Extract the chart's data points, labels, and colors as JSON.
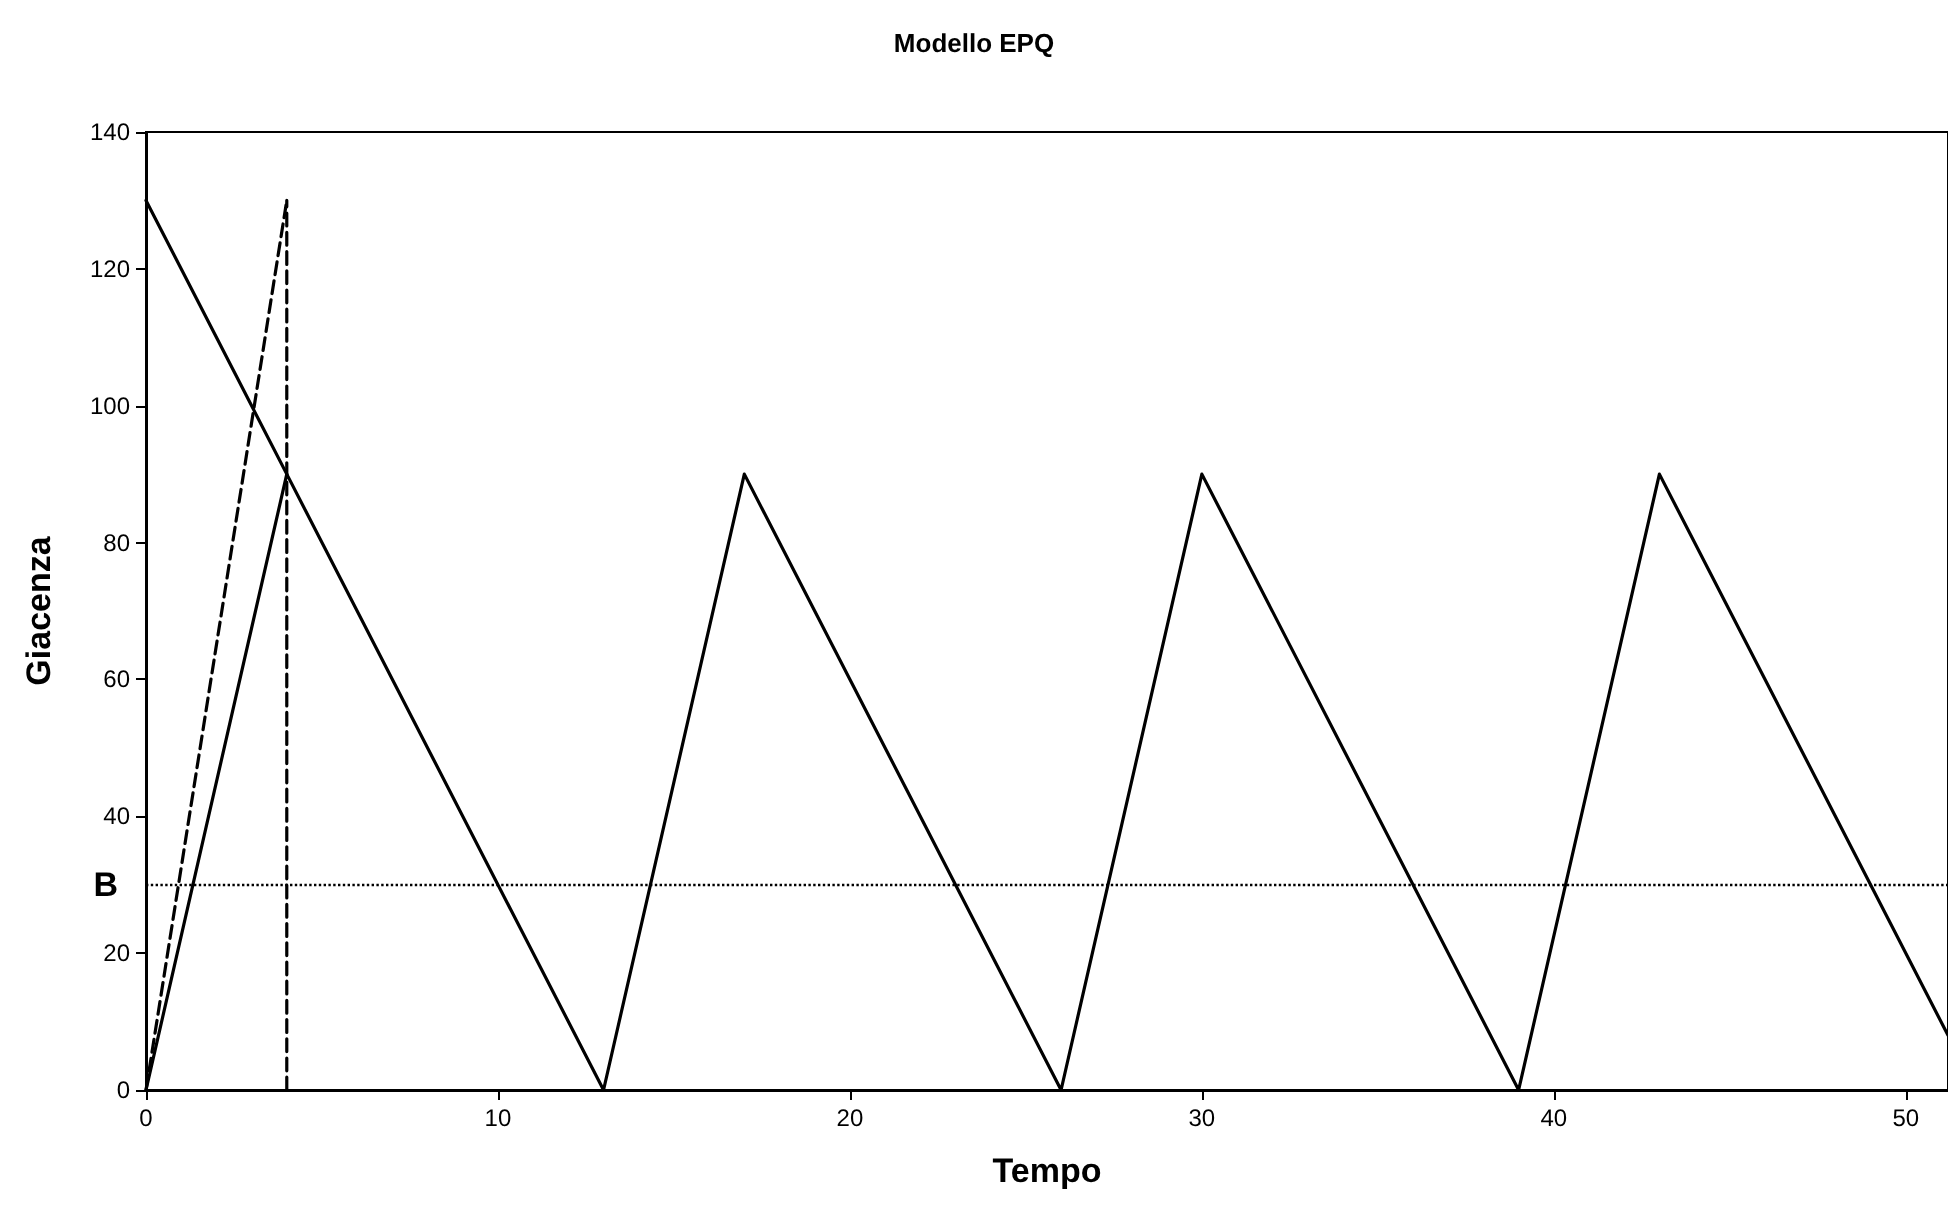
{
  "chart_data": {
    "type": "line",
    "title": "Modello EPQ",
    "xlabel": "Tempo",
    "ylabel": "Giacenza",
    "xlim": [
      0,
      51.2
    ],
    "xticks": [
      0,
      10,
      20,
      30,
      40,
      50
    ],
    "ylim": [
      0,
      140
    ],
    "yticks": [
      0,
      20,
      40,
      60,
      80,
      100,
      120,
      140
    ],
    "grid": false,
    "marker": "none",
    "series": [
      {
        "color": "#000000",
        "line_style": "solid",
        "x": [
          0,
          4,
          13,
          17,
          26,
          30,
          39,
          43,
          51.2
        ],
        "values": [
          0,
          90,
          0,
          90,
          0,
          90,
          0,
          90,
          8
        ]
      },
      {
        "color": "#000000",
        "line_style": "solid",
        "x": [
          0,
          4
        ],
        "values": [
          130,
          90
        ]
      },
      {
        "color": "#000000",
        "line_style": "dashed",
        "x": [
          0,
          4
        ],
        "values": [
          0,
          130
        ]
      },
      {
        "color": "#000000",
        "line_style": "dashed",
        "x": [
          4,
          4
        ],
        "values": [
          0,
          130
        ]
      }
    ],
    "ref_lines": [
      {
        "axis": "y",
        "value": 30,
        "label": "B",
        "color": "#000000",
        "line_style": "dotted"
      }
    ]
  }
}
